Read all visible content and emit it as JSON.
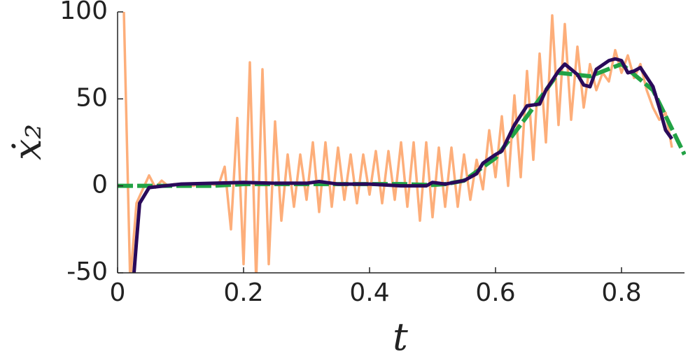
{
  "chart_data": {
    "type": "line",
    "xlabel": "t",
    "ylabel": "ẋ₂",
    "xlim": [
      0,
      0.9
    ],
    "ylim": [
      -50,
      100
    ],
    "xticks": [
      0,
      0.2,
      0.4,
      0.6,
      0.8
    ],
    "yticks": [
      100,
      50,
      0,
      -50
    ],
    "series": [
      {
        "color": "#fdae7a",
        "width": 3.5,
        "x": [
          0.01,
          0.02,
          0.03,
          0.04,
          0.05,
          0.06,
          0.07,
          0.08,
          0.09,
          0.1,
          0.11,
          0.12,
          0.13,
          0.14,
          0.15,
          0.16,
          0.17,
          0.18,
          0.19,
          0.2,
          0.21,
          0.22,
          0.23,
          0.24,
          0.25,
          0.26,
          0.27,
          0.28,
          0.29,
          0.3,
          0.31,
          0.32,
          0.33,
          0.34,
          0.35,
          0.36,
          0.37,
          0.38,
          0.39,
          0.4,
          0.41,
          0.42,
          0.43,
          0.44,
          0.45,
          0.46,
          0.47,
          0.48,
          0.49,
          0.5,
          0.51,
          0.52,
          0.53,
          0.54,
          0.55,
          0.56,
          0.57,
          0.58,
          0.59,
          0.6,
          0.61,
          0.62,
          0.63,
          0.64,
          0.65,
          0.66,
          0.67,
          0.68,
          0.69,
          0.7,
          0.71,
          0.72,
          0.73,
          0.74,
          0.75,
          0.76,
          0.77,
          0.78,
          0.79,
          0.8,
          0.81,
          0.82,
          0.83,
          0.84,
          0.85,
          0.86,
          0.87,
          0.88
        ],
        "values": [
          100,
          -55,
          -10,
          -2,
          6,
          -1,
          3,
          0,
          1,
          0,
          1,
          0,
          1,
          1,
          1,
          0,
          11,
          -25,
          39,
          -45,
          71,
          -55,
          67,
          -45,
          37,
          -20,
          18,
          -12,
          18,
          -8,
          25,
          -15,
          25,
          -12,
          22,
          -8,
          18,
          -10,
          18,
          -5,
          20,
          -10,
          20,
          -8,
          25,
          -12,
          25,
          -20,
          25,
          -18,
          22,
          -12,
          22,
          -12,
          18,
          -8,
          15,
          -2,
          32,
          5,
          40,
          0,
          52,
          5,
          66,
          15,
          76,
          25,
          98,
          35,
          93,
          38,
          80,
          45,
          70,
          55,
          65,
          60,
          78,
          65,
          75,
          62,
          70,
          55,
          45,
          38,
          42,
          22
        ]
      },
      {
        "color": "#22a245",
        "width": 6,
        "dash": "22 6",
        "x": [
          0,
          0.05,
          0.1,
          0.15,
          0.2,
          0.25,
          0.3,
          0.35,
          0.4,
          0.45,
          0.5,
          0.52,
          0.55,
          0.6,
          0.65,
          0.7,
          0.75,
          0.8,
          0.85,
          0.9
        ],
        "values": [
          0,
          0,
          0,
          0,
          1,
          1,
          1,
          1,
          1,
          1,
          0.5,
          1,
          3,
          16,
          40,
          65,
          63,
          70,
          55,
          18
        ]
      },
      {
        "color": "#2a0a5a",
        "width": 5,
        "x": [
          0.025,
          0.03,
          0.035,
          0.05,
          0.1,
          0.2,
          0.25,
          0.3,
          0.32,
          0.35,
          0.4,
          0.45,
          0.49,
          0.5,
          0.52,
          0.55,
          0.57,
          0.58,
          0.6,
          0.61,
          0.63,
          0.65,
          0.67,
          0.68,
          0.7,
          0.71,
          0.73,
          0.74,
          0.75,
          0.76,
          0.78,
          0.79,
          0.8,
          0.81,
          0.82,
          0.83,
          0.85,
          0.86,
          0.87,
          0.88
        ],
        "values": [
          -55,
          -32,
          -10,
          -1,
          1,
          2,
          1.5,
          1.5,
          2.5,
          1,
          1,
          0,
          0,
          2,
          1,
          3,
          7,
          13,
          18,
          20,
          35,
          46,
          47,
          55,
          66,
          70,
          64,
          58,
          57,
          67,
          72,
          73,
          72,
          65,
          66,
          68,
          57,
          45,
          32,
          27
        ]
      }
    ]
  }
}
